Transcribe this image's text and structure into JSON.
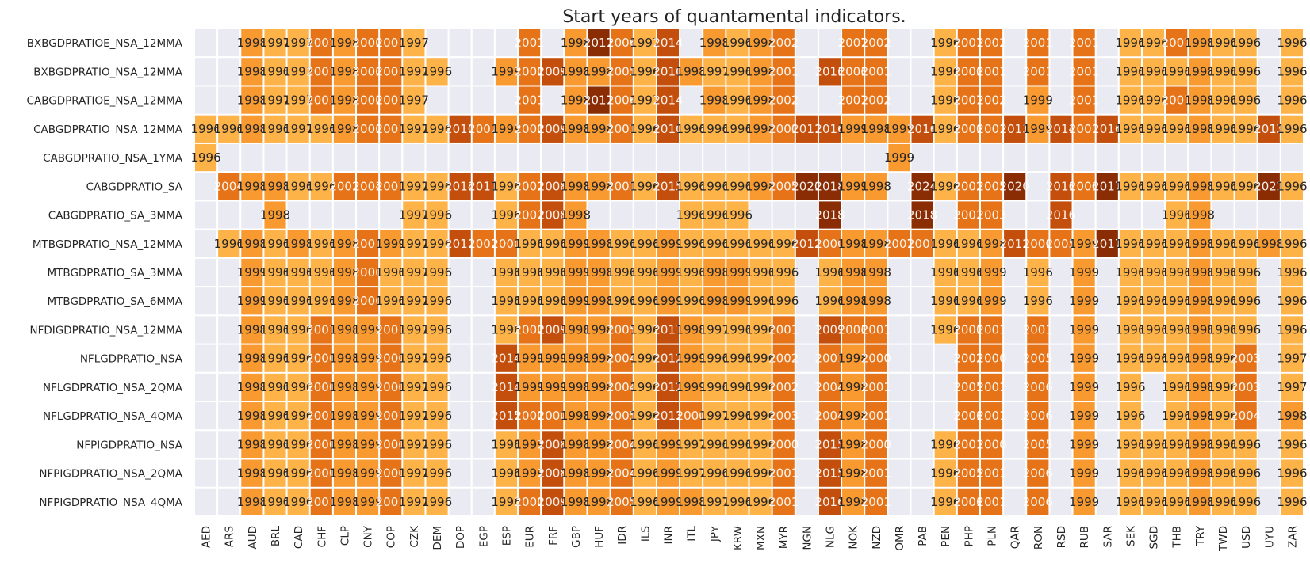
{
  "chart_data": {
    "type": "heatmap",
    "title": "Start years of quantamental indicators.",
    "xlabel": "",
    "ylabel": "",
    "colors": {
      "background": "#eaeaf2",
      "cell_border": "#ffffff",
      "scale": [
        "#fdb347",
        "#f89a30",
        "#e67317",
        "#c44e0b",
        "#8a2d04"
      ],
      "text": "#262626"
    },
    "value_range": [
      1996,
      2024
    ],
    "columns": [
      "AED",
      "ARS",
      "AUD",
      "BRL",
      "CAD",
      "CHF",
      "CLP",
      "CNY",
      "COP",
      "CZK",
      "DEM",
      "DOP",
      "EGP",
      "ESP",
      "EUR",
      "FRF",
      "GBP",
      "HUF",
      "IDR",
      "ILS",
      "INR",
      "ITL",
      "JPY",
      "KRW",
      "MXN",
      "MYR",
      "NGN",
      "NLG",
      "NOK",
      "NZD",
      "OMR",
      "PAB",
      "PEN",
      "PHP",
      "PLN",
      "QAR",
      "RON",
      "RSD",
      "RUB",
      "SAR",
      "SEK",
      "SGD",
      "THB",
      "TRY",
      "TWD",
      "USD",
      "UYU",
      "ZAR"
    ],
    "rows": [
      {
        "label": "BXBGDPRATIOE_NSA_12MMA",
        "values": [
          null,
          null,
          1998,
          1997,
          1997,
          2001,
          1998,
          2000,
          2001,
          1997,
          null,
          null,
          null,
          null,
          2001,
          null,
          1998,
          2017,
          2006,
          1997,
          2014,
          null,
          1998,
          1996,
          1998,
          2002,
          null,
          null,
          2007,
          2002,
          null,
          null,
          1996,
          2007,
          2002,
          null,
          2001,
          null,
          2001,
          null,
          1996,
          1996,
          2007,
          1998,
          1996,
          1996,
          null,
          1996
        ]
      },
      {
        "label": "BXBGDPRATIO_NSA_12MMA",
        "values": [
          null,
          null,
          1998,
          1996,
          1997,
          2001,
          1998,
          2000,
          2001,
          1997,
          1996,
          null,
          null,
          1999,
          2000,
          2009,
          1998,
          1998,
          2005,
          1996,
          2010,
          1998,
          1997,
          1996,
          1998,
          2001,
          null,
          2016,
          2006,
          2001,
          null,
          null,
          1996,
          2000,
          2001,
          null,
          2001,
          null,
          2001,
          null,
          1996,
          1996,
          1996,
          1998,
          1996,
          1996,
          null,
          1996
        ]
      },
      {
        "label": "CABGDPRATIOE_NSA_12MMA",
        "values": [
          null,
          null,
          1998,
          1997,
          1997,
          2001,
          1998,
          2000,
          2001,
          1997,
          null,
          null,
          null,
          null,
          2001,
          null,
          1998,
          2017,
          2006,
          1997,
          2014,
          null,
          1998,
          1996,
          1998,
          2002,
          null,
          null,
          2007,
          2002,
          null,
          null,
          1996,
          2007,
          2002,
          null,
          1999,
          null,
          2001,
          null,
          1996,
          1996,
          2007,
          1998,
          1996,
          1996,
          null,
          1996
        ]
      },
      {
        "label": "CABGDPRATIO_NSA_12MMA",
        "values": [
          1996,
          1996,
          1998,
          1996,
          1997,
          1996,
          1998,
          2000,
          2001,
          1997,
          1996,
          2010,
          2002,
          1999,
          2000,
          2009,
          1998,
          1998,
          2001,
          1996,
          2010,
          1996,
          1996,
          1996,
          1998,
          2000,
          2011,
          2016,
          1999,
          1998,
          1999,
          2016,
          1996,
          2000,
          2001,
          2013,
          1999,
          2014,
          2001,
          2016,
          1996,
          1996,
          1996,
          1998,
          1996,
          1996,
          2013,
          1996
        ]
      },
      {
        "label": "CABGDPRATIO_NSA_1YMA",
        "values": [
          1996,
          null,
          null,
          null,
          null,
          null,
          null,
          null,
          null,
          null,
          null,
          null,
          null,
          null,
          null,
          null,
          null,
          null,
          null,
          null,
          null,
          null,
          null,
          null,
          null,
          null,
          null,
          null,
          null,
          null,
          1999,
          null,
          null,
          null,
          null,
          null,
          null,
          null,
          null,
          null,
          null,
          null,
          null,
          null,
          null,
          null,
          null,
          null
        ]
      },
      {
        "label": "CABGDPRATIO_SA",
        "values": [
          null,
          2004,
          1998,
          1998,
          1996,
          1996,
          2002,
          2004,
          2001,
          1997,
          1996,
          2014,
          2011,
          1996,
          2002,
          2008,
          1998,
          1998,
          2001,
          1996,
          2015,
          1996,
          1996,
          1996,
          1998,
          2005,
          2020,
          2018,
          1999,
          1998,
          null,
          2024,
          1996,
          2002,
          2005,
          2020,
          null,
          2016,
          2006,
          2017,
          1996,
          1996,
          1996,
          1998,
          1996,
          1996,
          2021,
          1996
        ]
      },
      {
        "label": "CABGDPRATIO_SA_3MMA",
        "values": [
          null,
          null,
          null,
          1998,
          null,
          null,
          null,
          null,
          null,
          1997,
          1996,
          null,
          null,
          1996,
          2002,
          2008,
          1998,
          null,
          null,
          null,
          null,
          1996,
          1996,
          1996,
          null,
          null,
          null,
          2018,
          null,
          null,
          null,
          2018,
          null,
          2002,
          2003,
          null,
          null,
          2016,
          null,
          null,
          null,
          null,
          1996,
          1998,
          null,
          null,
          null,
          null
        ]
      },
      {
        "label": "MTBGDPRATIO_NSA_12MMA",
        "values": [
          null,
          1996,
          1998,
          1996,
          1998,
          1996,
          1998,
          2001,
          1999,
          1997,
          1996,
          2011,
          2002,
          2000,
          1996,
          1996,
          1999,
          1998,
          1996,
          1996,
          1999,
          1996,
          1996,
          1996,
          1996,
          1996,
          2012,
          2000,
          1998,
          1998,
          2007,
          2001,
          1996,
          1996,
          1998,
          2012,
          2000,
          2005,
          1999,
          2017,
          1996,
          1996,
          1996,
          1998,
          1996,
          1996,
          1998,
          1996
        ]
      },
      {
        "label": "MTBGDPRATIO_SA_3MMA",
        "values": [
          null,
          null,
          1999,
          1996,
          1996,
          1996,
          1998,
          2000,
          1996,
          1997,
          1996,
          null,
          null,
          1996,
          1996,
          1996,
          1999,
          1998,
          1996,
          1996,
          1999,
          1996,
          1998,
          1999,
          1996,
          1996,
          null,
          1996,
          1998,
          1998,
          null,
          null,
          1996,
          1996,
          1999,
          null,
          1996,
          null,
          1999,
          null,
          1996,
          1996,
          1996,
          1998,
          1996,
          1996,
          null,
          1996
        ]
      },
      {
        "label": "MTBGDPRATIO_SA_6MMA",
        "values": [
          null,
          null,
          1999,
          1996,
          1996,
          1996,
          1998,
          2000,
          1996,
          1997,
          1996,
          null,
          null,
          1996,
          1996,
          1996,
          1999,
          1998,
          1996,
          1996,
          1999,
          1996,
          1998,
          1999,
          1996,
          1996,
          null,
          1996,
          1998,
          1998,
          null,
          null,
          1996,
          1996,
          1999,
          null,
          1996,
          null,
          1999,
          null,
          1996,
          1996,
          1996,
          1998,
          1996,
          1996,
          null,
          1996
        ]
      },
      {
        "label": "NFDIGDPRATIO_NSA_12MMA",
        "values": [
          null,
          null,
          1998,
          1996,
          1996,
          2001,
          1998,
          1999,
          2001,
          1997,
          1996,
          null,
          null,
          1996,
          2000,
          2009,
          1998,
          1998,
          2005,
          1996,
          2011,
          1998,
          1997,
          1996,
          1996,
          2001,
          null,
          2009,
          2006,
          2001,
          null,
          null,
          1996,
          2000,
          2001,
          null,
          2001,
          null,
          1999,
          null,
          1996,
          1996,
          1996,
          1998,
          1996,
          1996,
          null,
          1996
        ]
      },
      {
        "label": "NFLGDPRATIO_NSA",
        "values": [
          null,
          null,
          1998,
          1996,
          1996,
          2000,
          1998,
          1999,
          2000,
          1997,
          1996,
          null,
          null,
          2014,
          1999,
          1999,
          1998,
          1998,
          2004,
          1996,
          2012,
          1999,
          1996,
          1996,
          1996,
          2002,
          null,
          2001,
          1998,
          2000,
          null,
          null,
          null,
          2002,
          2000,
          null,
          2005,
          null,
          1999,
          null,
          1996,
          1996,
          1996,
          1998,
          1996,
          2003,
          null,
          1997
        ]
      },
      {
        "label": "NFLGDPRATIO_NSA_2QMA",
        "values": [
          null,
          null,
          1998,
          1996,
          1996,
          2000,
          1998,
          1999,
          2000,
          1997,
          1996,
          null,
          null,
          2014,
          1999,
          1999,
          1998,
          1998,
          2004,
          1996,
          2012,
          1999,
          1996,
          1996,
          1996,
          2002,
          null,
          2004,
          1998,
          2001,
          null,
          null,
          null,
          2005,
          2001,
          null,
          2006,
          null,
          1999,
          null,
          1996,
          null,
          1996,
          1998,
          1996,
          2003,
          null,
          1997
        ]
      },
      {
        "label": "NFLGDPRATIO_NSA_4QMA",
        "values": [
          null,
          null,
          1998,
          1996,
          1996,
          2001,
          1998,
          1999,
          2001,
          1997,
          1996,
          null,
          null,
          2015,
          2000,
          2000,
          1998,
          1998,
          2005,
          1996,
          2013,
          2000,
          1997,
          1996,
          1996,
          2003,
          null,
          2004,
          1998,
          2001,
          null,
          null,
          null,
          2006,
          2001,
          null,
          2006,
          null,
          1999,
          null,
          1996,
          null,
          1996,
          1998,
          1996,
          2004,
          null,
          1998
        ]
      },
      {
        "label": "NFPIGDPRATIO_NSA",
        "values": [
          null,
          null,
          1998,
          1996,
          1996,
          2000,
          1998,
          1999,
          2000,
          1997,
          1996,
          null,
          null,
          1996,
          1999,
          2008,
          1998,
          1998,
          2004,
          1996,
          1999,
          1997,
          1996,
          1996,
          1996,
          2000,
          null,
          2015,
          1998,
          2000,
          null,
          null,
          1996,
          2001,
          2000,
          null,
          2005,
          null,
          1999,
          null,
          1996,
          1996,
          1996,
          1998,
          1996,
          1996,
          null,
          1996
        ]
      },
      {
        "label": "NFPIGDPRATIO_NSA_2QMA",
        "values": [
          null,
          null,
          1998,
          1996,
          1996,
          2000,
          1998,
          1999,
          2000,
          1997,
          1996,
          null,
          null,
          1996,
          1999,
          2008,
          1998,
          1998,
          2004,
          1996,
          1999,
          1997,
          1996,
          1996,
          1996,
          2001,
          null,
          2015,
          1998,
          2001,
          null,
          null,
          1996,
          2005,
          2001,
          null,
          2006,
          null,
          1999,
          null,
          1996,
          1996,
          1996,
          1998,
          1996,
          1996,
          null,
          1996
        ]
      },
      {
        "label": "NFPIGDPRATIO_NSA_4QMA",
        "values": [
          null,
          null,
          1998,
          1996,
          1996,
          2001,
          1998,
          1999,
          2001,
          1997,
          1996,
          null,
          null,
          1996,
          2000,
          2009,
          1998,
          1998,
          2005,
          1996,
          1999,
          1998,
          1997,
          1996,
          1996,
          2001,
          null,
          2016,
          1998,
          2001,
          null,
          null,
          1996,
          2006,
          2001,
          null,
          2006,
          null,
          1999,
          null,
          1996,
          1996,
          1996,
          1998,
          1996,
          1996,
          null,
          1996
        ]
      }
    ]
  }
}
